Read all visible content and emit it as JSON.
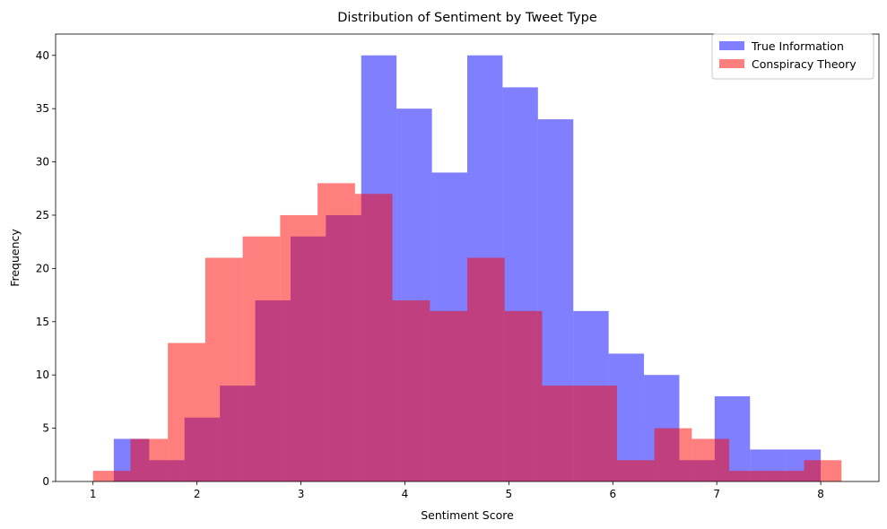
{
  "chart_data": {
    "type": "bar",
    "title": "Distribution of Sentiment by Tweet Type",
    "xlabel": "Sentiment Score",
    "ylabel": "Frequency",
    "xlim": [
      0.64,
      8.56
    ],
    "ylim": [
      0,
      42
    ],
    "xticks": [
      1,
      2,
      3,
      4,
      5,
      6,
      7,
      8
    ],
    "yticks": [
      0,
      5,
      10,
      15,
      20,
      25,
      30,
      35,
      40
    ],
    "legend_position": "top-right",
    "grid": false,
    "series": [
      {
        "name": "True Information",
        "color": "#0000ff",
        "opacity": 0.5,
        "bin_edges": [
          1.2,
          1.54,
          1.88,
          2.22,
          2.56,
          2.9,
          3.24,
          3.58,
          3.92,
          4.26,
          4.6,
          4.94,
          5.28,
          5.62,
          5.96,
          6.3,
          6.64,
          6.98,
          7.32,
          7.66,
          8.0
        ],
        "counts": [
          4,
          2,
          6,
          9,
          17,
          23,
          25,
          40,
          35,
          29,
          40,
          37,
          34,
          16,
          12,
          10,
          2,
          8,
          3,
          3
        ]
      },
      {
        "name": "Conspiracy Theory",
        "color": "#ff0000",
        "opacity": 0.5,
        "bin_edges": [
          1.0,
          1.36,
          1.72,
          2.08,
          2.44,
          2.8,
          3.16,
          3.52,
          3.88,
          4.24,
          4.6,
          4.96,
          5.32,
          5.68,
          6.04,
          6.4,
          6.76,
          7.12,
          7.48,
          7.84,
          8.2
        ],
        "counts": [
          1,
          4,
          13,
          21,
          23,
          25,
          28,
          27,
          17,
          16,
          21,
          16,
          9,
          9,
          2,
          5,
          4,
          1,
          1,
          2
        ]
      }
    ]
  }
}
